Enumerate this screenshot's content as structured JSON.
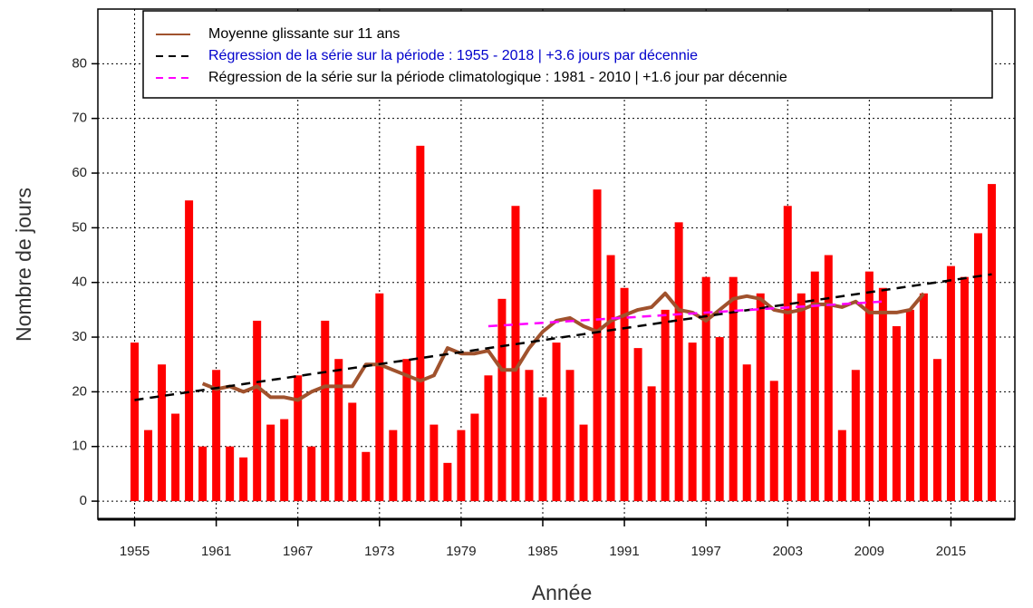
{
  "chart_data": {
    "type": "bar",
    "xlabel": "Année",
    "ylabel": "Nombre de jours",
    "x": [
      1955,
      1956,
      1957,
      1958,
      1959,
      1960,
      1961,
      1962,
      1963,
      1964,
      1965,
      1966,
      1967,
      1968,
      1969,
      1970,
      1971,
      1972,
      1973,
      1974,
      1975,
      1976,
      1977,
      1978,
      1979,
      1980,
      1981,
      1982,
      1983,
      1984,
      1985,
      1986,
      1987,
      1988,
      1989,
      1990,
      1991,
      1992,
      1993,
      1994,
      1995,
      1996,
      1997,
      1998,
      1999,
      2000,
      2001,
      2002,
      2003,
      2004,
      2005,
      2006,
      2007,
      2008,
      2009,
      2010,
      2011,
      2012,
      2013,
      2014,
      2015,
      2016,
      2017,
      2018
    ],
    "values": [
      29,
      13,
      25,
      16,
      55,
      10,
      24,
      10,
      8,
      33,
      14,
      15,
      23,
      10,
      33,
      26,
      18,
      9,
      38,
      13,
      26,
      65,
      14,
      7,
      13,
      16,
      23,
      37,
      54,
      24,
      19,
      29,
      24,
      14,
      57,
      45,
      39,
      28,
      21,
      35,
      51,
      29,
      41,
      30,
      41,
      25,
      38,
      22,
      54,
      38,
      42,
      45,
      13,
      24,
      42,
      39,
      32,
      35,
      38,
      26,
      43,
      41,
      49,
      58
    ],
    "color": "#ff0000",
    "series": [
      {
        "name": "Moyenne glissante sur 11 ans",
        "type": "line",
        "color": "#a0522d",
        "dash": false,
        "legend_text_color": "#000000",
        "values": [
          null,
          null,
          null,
          null,
          null,
          21.5,
          20.5,
          21,
          20,
          21,
          19,
          19,
          18.5,
          20,
          21,
          21,
          21,
          25,
          25,
          24,
          23,
          22,
          23,
          28,
          27,
          27,
          27.5,
          24,
          24,
          28,
          31,
          33,
          33.5,
          32,
          31,
          33,
          34,
          35,
          35.5,
          38,
          35,
          34.5,
          33,
          35,
          37,
          37.5,
          37,
          35,
          34.5,
          35,
          36,
          36,
          35.5,
          36.5,
          34.5,
          34.5,
          34.5,
          35,
          38,
          null,
          null,
          null,
          null,
          null
        ]
      },
      {
        "name": "Régression de la série sur la période : 1955 - 2018 | +3.6 jours par décennie",
        "type": "line",
        "color": "#000000",
        "dash": true,
        "legend_text_color": "#0000cc",
        "x": [
          1955,
          2018
        ],
        "values": [
          18.5,
          41.5
        ]
      },
      {
        "name": "Régression de la série sur la période climatologique : 1981 - 2010 | +1.6 jour par décennie",
        "type": "line",
        "color": "#ff00ff",
        "dash": true,
        "legend_text_color": "#000000",
        "x": [
          1981,
          2010
        ],
        "values": [
          32,
          36.5
        ]
      }
    ],
    "xlim": [
      1952.3,
      2019.7
    ],
    "xticks": [
      1955,
      1961,
      1967,
      1973,
      1979,
      1985,
      1991,
      1997,
      2003,
      2009,
      2015
    ],
    "ylim": [
      -3.3,
      90
    ],
    "yticks": [
      0,
      10,
      20,
      30,
      40,
      50,
      60,
      70,
      80
    ],
    "grid": true,
    "legend": "top"
  }
}
